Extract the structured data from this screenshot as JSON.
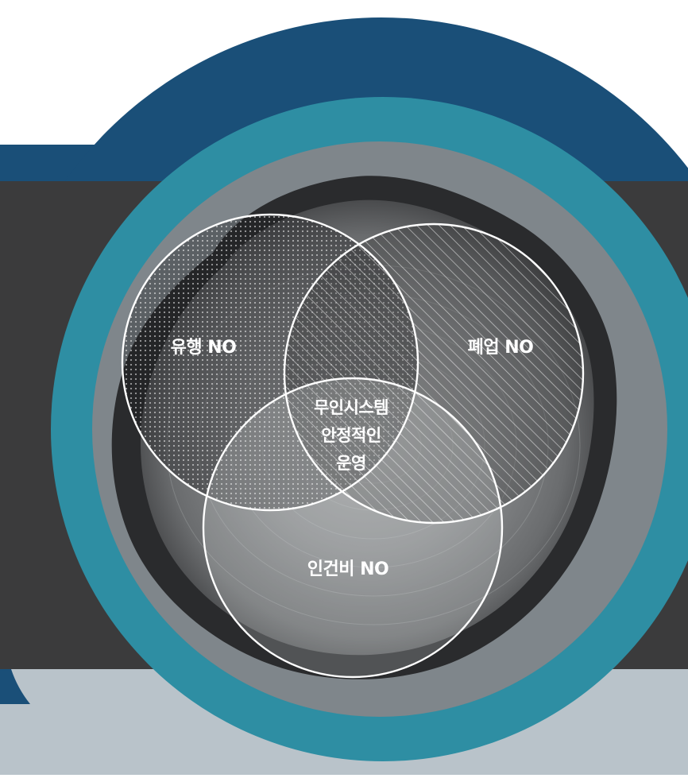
{
  "colors": {
    "navy": "#1a4f78",
    "teal": "#2e8ea3",
    "dark_band": "#3b3b3c",
    "grey_ring": "#7f868b",
    "light_grey": "#b9c3ca"
  },
  "venn": {
    "top_left": "유행 NO",
    "top_right": "폐업 NO",
    "bottom": "인건비 NO",
    "center": [
      "무인시스템",
      "안정적인",
      "운영"
    ]
  }
}
